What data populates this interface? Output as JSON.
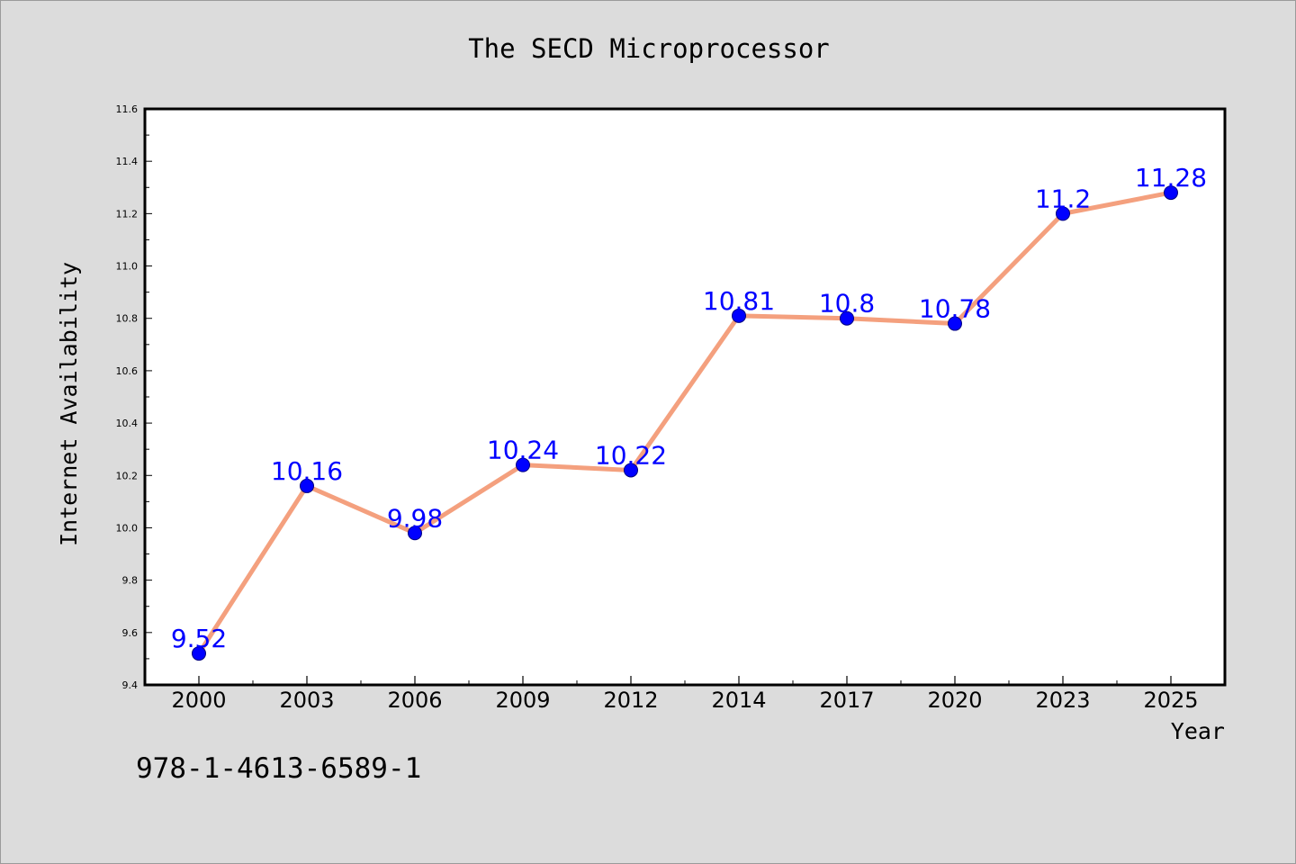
{
  "chart_data": {
    "type": "line",
    "title": "The SECD Microprocessor",
    "xlabel": "Year",
    "ylabel": "Internet Availability",
    "categories": [
      "2000",
      "2003",
      "2006",
      "2009",
      "2012",
      "2014",
      "2017",
      "2020",
      "2023",
      "2025"
    ],
    "series": [
      {
        "values": [
          9.52,
          10.16,
          9.98,
          10.24,
          10.22,
          10.81,
          10.8,
          10.78,
          11.2,
          11.28
        ],
        "data_labels": [
          "9.52",
          "10.16",
          "9.98",
          "10.24",
          "10.22",
          "10.81",
          "10.8",
          "10.78",
          "11.2",
          "11.28"
        ]
      }
    ],
    "ylim": [
      9.4,
      11.6
    ],
    "yticks": [
      9.4,
      9.6,
      9.8,
      10.0,
      10.2,
      10.4,
      10.6,
      10.8,
      11.0,
      11.2,
      11.4,
      11.6
    ],
    "ytick_labels": [
      "9.4",
      "9.6",
      "9.8",
      "10.0",
      "10.2",
      "10.4",
      "10.6",
      "10.8",
      "11.0",
      "11.2",
      "11.4",
      "11.6"
    ],
    "grid": false,
    "legend": "none"
  },
  "annotation": "978-1-4613-6589-1",
  "colors": {
    "background": "#dcdcdc",
    "plot_background": "#ffffff",
    "line": "#f4a07e",
    "marker": "#0000ff",
    "data_label": "#0000ff",
    "axis": "#000000",
    "text": "#000000"
  }
}
